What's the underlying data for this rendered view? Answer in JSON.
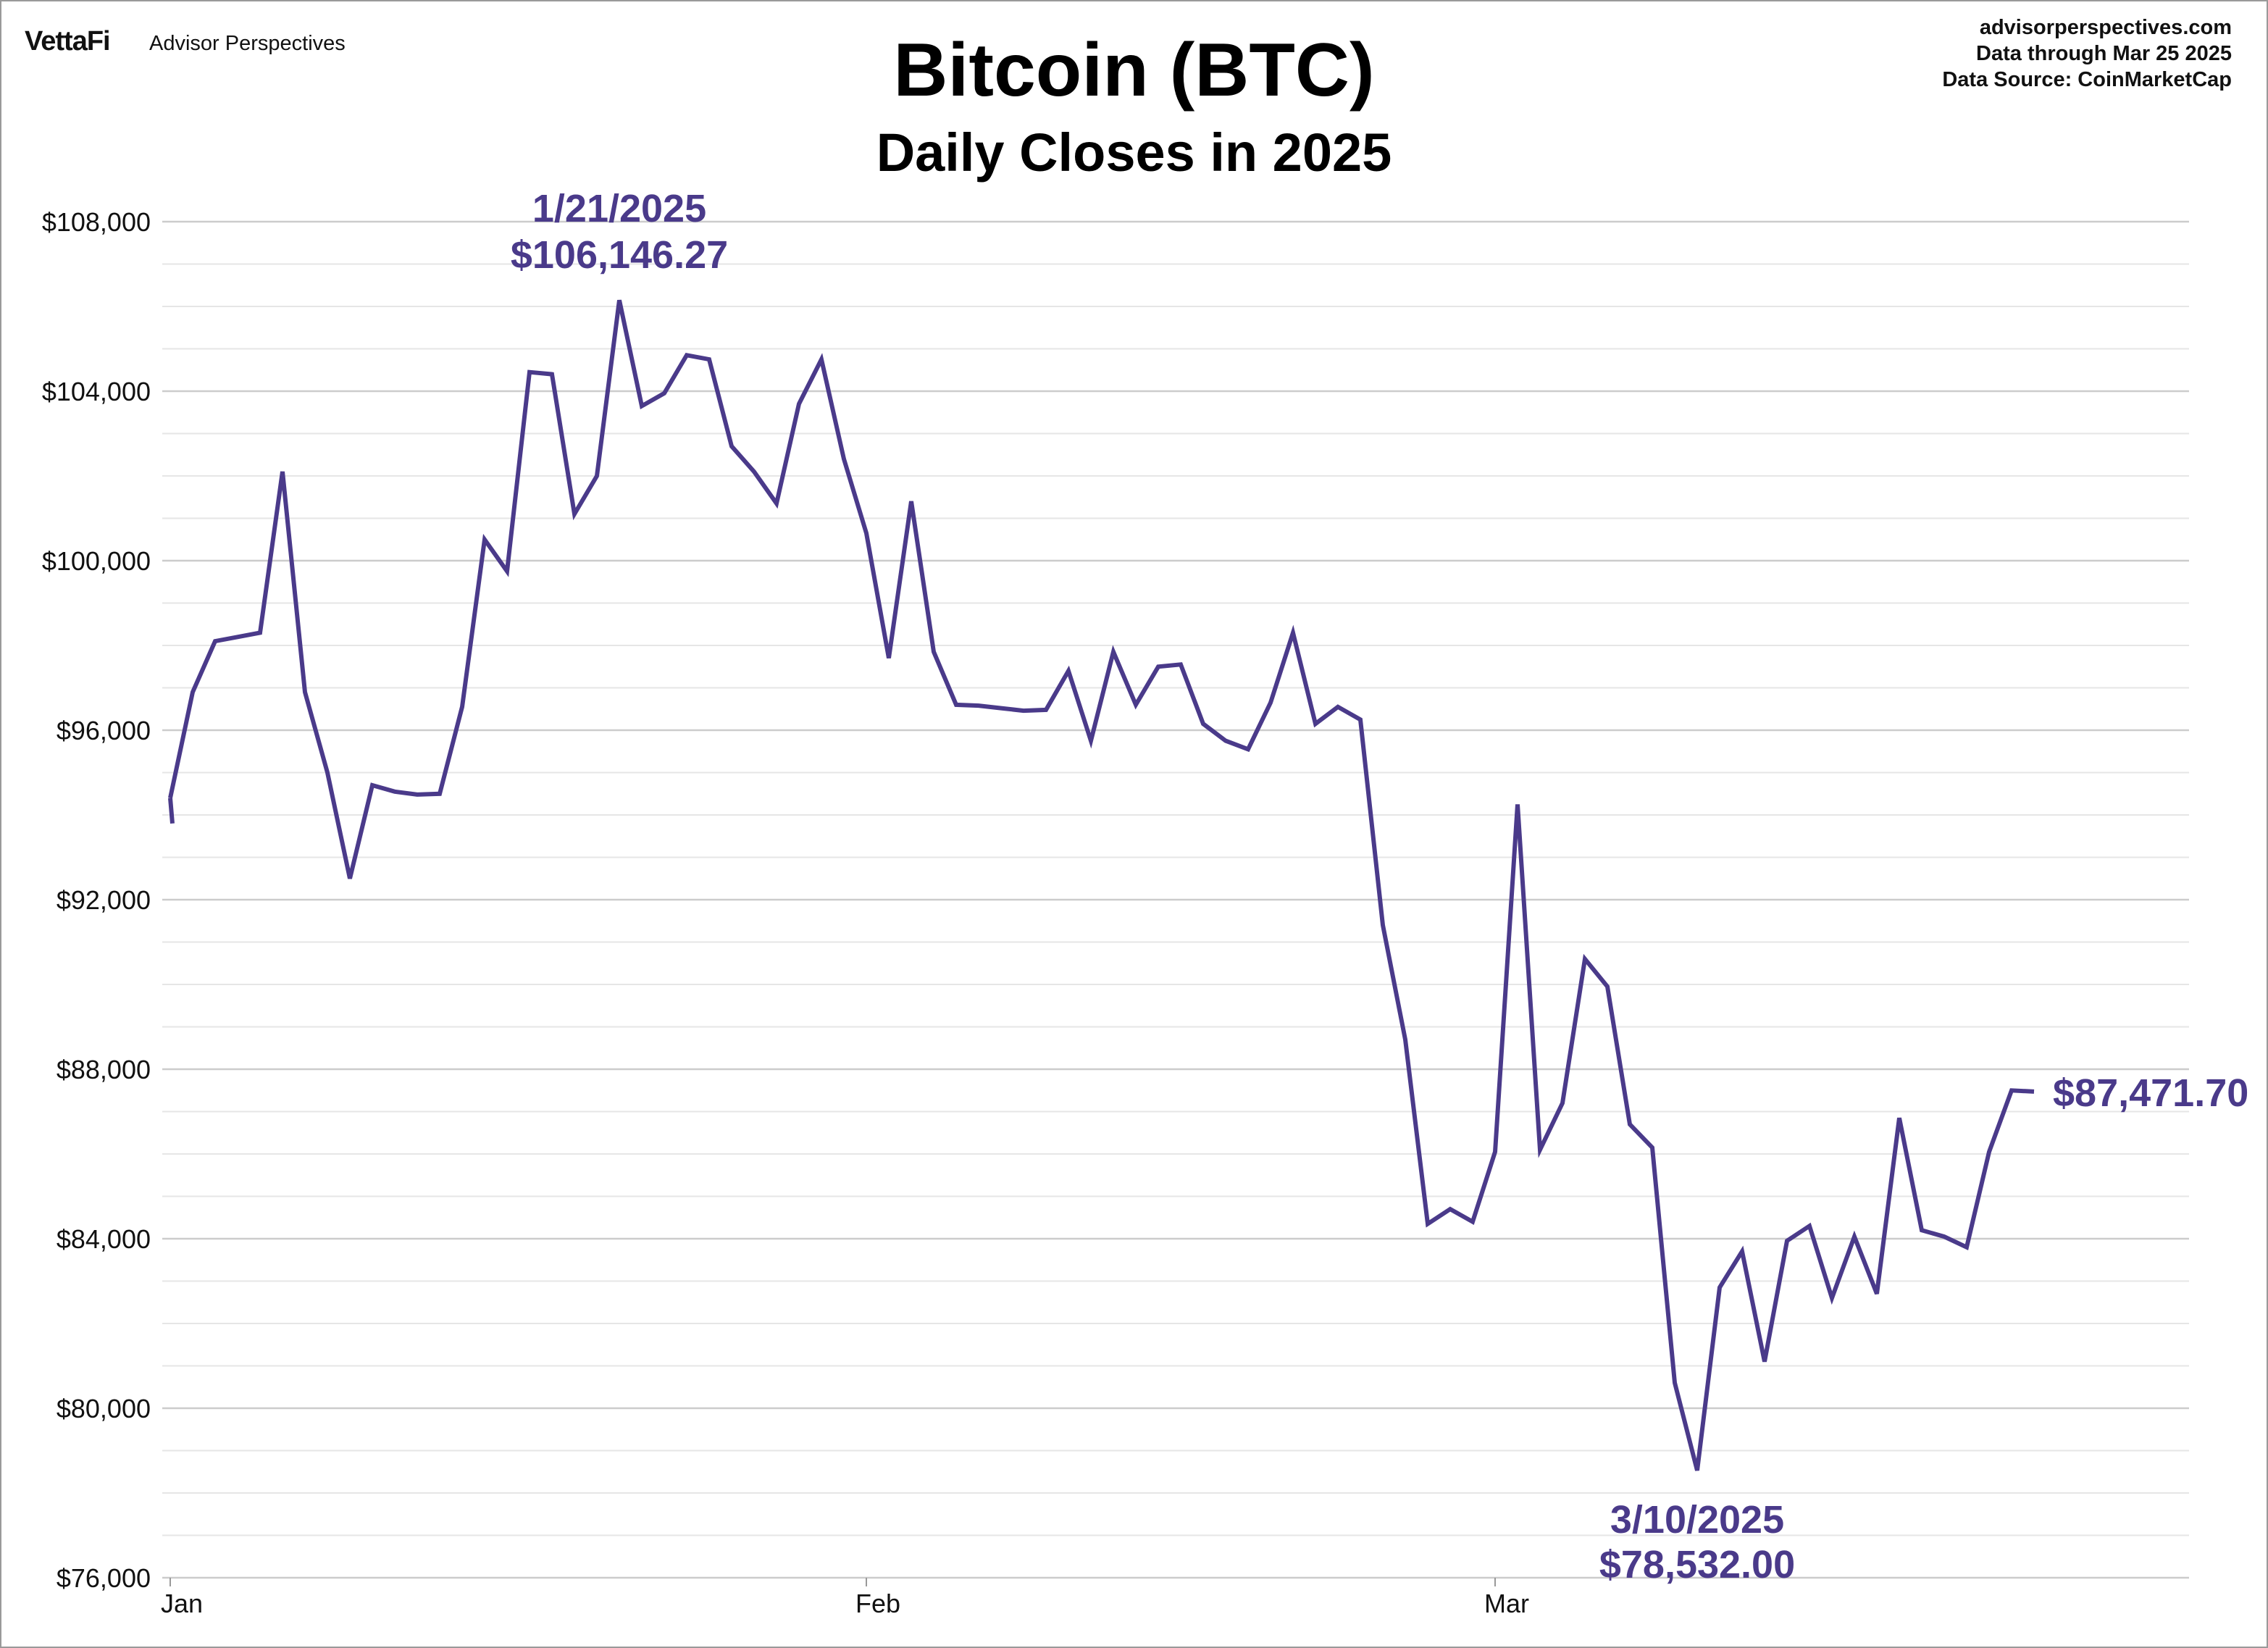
{
  "header": {
    "brand_main": "VettaFi",
    "brand_sub": "Advisor Perspectives",
    "source_lines": [
      "advisorperspectives.com",
      "Data through  Mar 25 2025",
      "Data Source:  CoinMarketCap"
    ]
  },
  "chart_data": {
    "type": "line",
    "title": "Bitcoin (BTC)",
    "subtitle": "Daily Closes in 2025",
    "xlabel": "",
    "ylabel": "",
    "x_ticks": [
      "Jan",
      "Feb",
      "Mar"
    ],
    "x_tick_dates": [
      "2025-01-01",
      "2025-02-01",
      "2025-03-01"
    ],
    "ylim": [
      76000,
      108000
    ],
    "y_ticks": [
      "$76,000",
      "$80,000",
      "$84,000",
      "$88,000",
      "$92,000",
      "$96,000",
      "$100,000",
      "$104,000",
      "$108,000"
    ],
    "grid": true,
    "line_color": "#4a3a8a",
    "series": [
      {
        "x": [
          "2025-01-01",
          "2025-01-02",
          "2025-01-03",
          "2025-01-04",
          "2025-01-05",
          "2025-01-06",
          "2025-01-07",
          "2025-01-08",
          "2025-01-09",
          "2025-01-10",
          "2025-01-11",
          "2025-01-12",
          "2025-01-13",
          "2025-01-14",
          "2025-01-15",
          "2025-01-16",
          "2025-01-17",
          "2025-01-18",
          "2025-01-19",
          "2025-01-20",
          "2025-01-21",
          "2025-01-22",
          "2025-01-23",
          "2025-01-24",
          "2025-01-25",
          "2025-01-26",
          "2025-01-27",
          "2025-01-28",
          "2025-01-29",
          "2025-01-30",
          "2025-01-31",
          "2025-02-01",
          "2025-02-02",
          "2025-02-03",
          "2025-02-04",
          "2025-02-05",
          "2025-02-06",
          "2025-02-07",
          "2025-02-08",
          "2025-02-09",
          "2025-02-10",
          "2025-02-11",
          "2025-02-12",
          "2025-02-13",
          "2025-02-14",
          "2025-02-15",
          "2025-02-16",
          "2025-02-17",
          "2025-02-18",
          "2025-02-19",
          "2025-02-20",
          "2025-02-21",
          "2025-02-22",
          "2025-02-23",
          "2025-02-24",
          "2025-02-25",
          "2025-02-26",
          "2025-02-27",
          "2025-02-28",
          "2025-03-01",
          "2025-03-02",
          "2025-03-03",
          "2025-03-04",
          "2025-03-05",
          "2025-03-06",
          "2025-03-07",
          "2025-03-08",
          "2025-03-09",
          "2025-03-10",
          "2025-03-11",
          "2025-03-12",
          "2025-03-13",
          "2025-03-14",
          "2025-03-15",
          "2025-03-16",
          "2025-03-17",
          "2025-03-18",
          "2025-03-19",
          "2025-03-20",
          "2025-03-21",
          "2025-03-22",
          "2025-03-23",
          "2025-03-24",
          "2025-03-25"
        ],
        "values": [
          94400,
          96900,
          98100,
          98200,
          98300,
          102100,
          96900,
          95000,
          92500,
          94700,
          94550,
          94480,
          94500,
          96550,
          100500,
          99750,
          104450,
          104400,
          101100,
          102000,
          106146.27,
          103650,
          103950,
          104850,
          104750,
          102700,
          102100,
          101350,
          103700,
          104750,
          102400,
          100650,
          97700,
          101400,
          97850,
          96600,
          96580,
          96520,
          96460,
          96480,
          97400,
          95750,
          97850,
          96600,
          97500,
          97550,
          96150,
          95750,
          95550,
          96650,
          98300,
          96150,
          96550,
          96250,
          91400,
          88700,
          84350,
          84700,
          84400,
          86050,
          94250,
          86100,
          87200,
          90600,
          89950,
          86700,
          86150,
          80600,
          78532.0,
          82850,
          83700,
          81100,
          83950,
          84300,
          82600,
          84050,
          82700,
          86850,
          84200,
          84050,
          83800,
          86050,
          87500,
          87471.7
        ]
      }
    ],
    "annotations": [
      {
        "date_label": "1/21/2025",
        "value_label": "$106,146.27",
        "x": "2025-01-21",
        "y": 106146.27
      },
      {
        "date_label": "3/10/2025",
        "value_label": "$78,532.00",
        "x": "2025-03-10",
        "y": 78532.0
      },
      {
        "value_label": "$87,471.70",
        "x": "2025-03-25",
        "y": 87471.7
      }
    ]
  }
}
